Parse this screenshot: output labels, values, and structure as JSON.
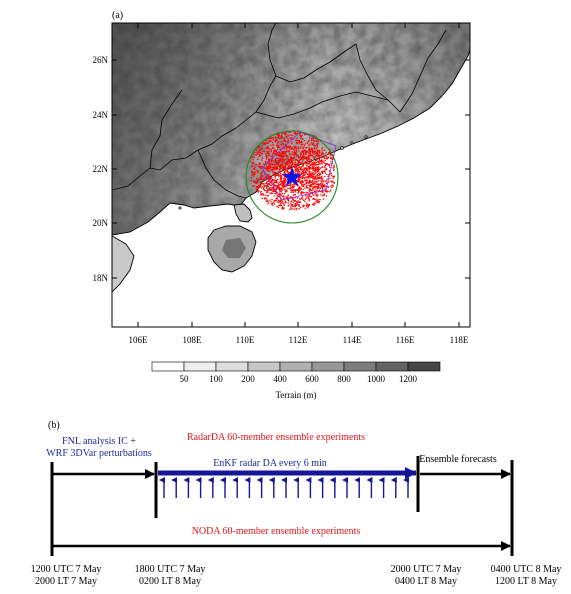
{
  "panel_a": {
    "label": "(a)",
    "lat_ticks": [
      "26N",
      "24N",
      "22N",
      "20N",
      "18N"
    ],
    "lon_ticks": [
      "106E",
      "108E",
      "110E",
      "112E",
      "114E",
      "116E",
      "118E"
    ],
    "colorbar": {
      "ticks": [
        "50",
        "100",
        "200",
        "400",
        "600",
        "800",
        "1000",
        "1200"
      ],
      "label": "Terrain (m)",
      "colors": [
        "#ffffff",
        "#eeeeee",
        "#dddddd",
        "#c6c6c6",
        "#b0b0b0",
        "#979797",
        "#7d7d7d",
        "#636363",
        "#454545"
      ]
    },
    "colors": {
      "radar_obs": "#ff0000",
      "domain_circle": "#1a8a1a",
      "radar_site": "#1515e0",
      "coast": "#000000"
    }
  },
  "panel_b": {
    "label": "(b)",
    "init_text_1": "FNL analysis IC +",
    "init_text_2": "WRF 3DVar perturbations",
    "radarda_title": "RadarDA 60-member ensemble experiments",
    "enkf_label": "EnKF radar DA every 6 min",
    "forecast_label": "Ensemble forecasts",
    "noda_title": "NODA 60-member ensemble experiments",
    "times": [
      {
        "utc": "1200 UTC 7 May",
        "lt": "2000 LT 7 May"
      },
      {
        "utc": "1800 UTC 7 May",
        "lt": "0200 LT 8 May"
      },
      {
        "utc": "2000 UTC 7 May",
        "lt": "0400 LT 8 May"
      },
      {
        "utc": "0400 UTC 8 May",
        "lt": "1200 LT 8 May"
      }
    ],
    "colors": {
      "red_text": "#e8141b",
      "blue_text": "#1e2a9c",
      "da_arrow": "#15159a",
      "line": "#000000"
    }
  }
}
